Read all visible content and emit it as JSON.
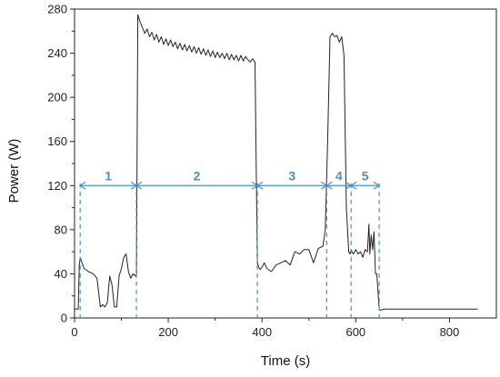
{
  "chart_data": {
    "type": "line",
    "title": "",
    "xlabel": "Time (s)",
    "ylabel": "Power (W)",
    "xlim": [
      0,
      900
    ],
    "ylim": [
      0,
      280
    ],
    "x_ticks": [
      0,
      200,
      400,
      600,
      800
    ],
    "y_ticks": [
      0,
      40,
      80,
      120,
      160,
      200,
      240,
      280
    ],
    "grid": false,
    "line_color": "#222222",
    "accent_color": "#4a90c8",
    "series": [
      {
        "x": [
          0,
          8,
          10,
          12,
          20,
          30,
          40,
          48,
          55,
          60,
          65,
          70,
          75,
          80,
          85,
          90,
          95,
          100,
          105,
          110,
          115,
          120,
          125,
          130,
          132,
          135,
          140,
          145,
          150,
          155,
          160,
          165,
          170,
          175,
          180,
          185,
          190,
          195,
          200,
          205,
          210,
          215,
          220,
          225,
          230,
          235,
          240,
          245,
          250,
          255,
          260,
          265,
          270,
          275,
          280,
          285,
          290,
          295,
          300,
          305,
          310,
          315,
          320,
          325,
          330,
          335,
          340,
          345,
          350,
          355,
          360,
          365,
          370,
          375,
          380,
          385,
          390,
          393,
          396,
          400,
          405,
          410,
          420,
          430,
          440,
          450,
          460,
          470,
          480,
          490,
          500,
          510,
          520,
          525,
          530,
          535,
          540,
          545,
          550,
          555,
          560,
          565,
          570,
          575,
          580,
          585,
          588,
          590,
          592,
          595,
          600,
          605,
          610,
          615,
          620,
          625,
          628,
          630,
          633,
          636,
          639,
          642,
          645,
          648,
          650,
          652,
          660,
          700,
          750,
          800,
          860
        ],
        "y": [
          8,
          8,
          48,
          55,
          45,
          42,
          40,
          36,
          10,
          12,
          10,
          14,
          38,
          30,
          10,
          10,
          38,
          45,
          55,
          58,
          42,
          36,
          40,
          38,
          40,
          275,
          268,
          263,
          258,
          262,
          255,
          259,
          252,
          257,
          250,
          255,
          248,
          253,
          247,
          252,
          246,
          250,
          244,
          249,
          243,
          248,
          242,
          247,
          241,
          246,
          240,
          245,
          239,
          244,
          238,
          243,
          237,
          242,
          236,
          241,
          236,
          240,
          235,
          240,
          234,
          239,
          234,
          238,
          233,
          238,
          233,
          237,
          234,
          232,
          235,
          232,
          50,
          46,
          44,
          46,
          50,
          45,
          42,
          48,
          50,
          52,
          48,
          60,
          58,
          62,
          62,
          50,
          63,
          64,
          65,
          80,
          160,
          255,
          258,
          255,
          256,
          250,
          255,
          238,
          100,
          60,
          58,
          62,
          60,
          58,
          62,
          58,
          60,
          55,
          62,
          60,
          85,
          58,
          75,
          62,
          78,
          40,
          40,
          20,
          8,
          7,
          8,
          8,
          8,
          8,
          8
        ]
      }
    ],
    "phases": {
      "boundaries": [
        12,
        132,
        390,
        538,
        590,
        650
      ],
      "labels": [
        "1",
        "2",
        "3",
        "4",
        "5"
      ],
      "arrow_y": 120
    }
  }
}
